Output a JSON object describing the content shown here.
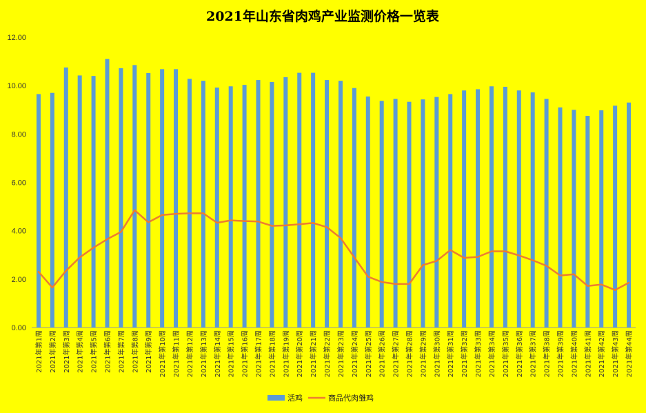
{
  "chart_data": {
    "type": "bar",
    "title": "2021年山东省肉鸡产业监测价格一览表",
    "categories": [
      "2021年第1周",
      "2021年第2周",
      "2021年第3周",
      "2021年第4周",
      "2021年第5周",
      "2021年第6周",
      "2021年第7周",
      "2021年第8周",
      "2021年第9周",
      "2021年第10周",
      "2021年第11周",
      "2021年第12周",
      "2021年第13周",
      "2021年第14周",
      "2021年第15周",
      "2021年第16周",
      "2021年第17周",
      "2021年第18周",
      "2021年第19周",
      "2021年第20周",
      "2021年第21周",
      "2021年第22周",
      "2021年第23周",
      "2021年第24周",
      "2021年第25周",
      "2021年第26周",
      "2021年第27周",
      "2021年第28周",
      "2021年第29周",
      "2021年第30周",
      "2021年第31周",
      "2021年第32周",
      "2021年第33周",
      "2021年第34周",
      "2021年第35周",
      "2021年第36周",
      "2021年第37周",
      "2021年第38周",
      "2021年第39周",
      "2021年第40周",
      "2021年第41周",
      "2021年第42周",
      "2021年第43周",
      "2021年第44周"
    ],
    "series": [
      {
        "name": "活鸡",
        "type": "bar",
        "color": "#5B9BD5",
        "values": [
          9.65,
          9.7,
          10.75,
          10.42,
          10.4,
          11.1,
          10.72,
          10.85,
          10.52,
          10.68,
          10.68,
          10.28,
          10.2,
          9.92,
          9.97,
          10.03,
          10.23,
          10.15,
          10.35,
          10.53,
          10.53,
          10.23,
          10.2,
          9.9,
          9.55,
          9.37,
          9.45,
          9.33,
          9.43,
          9.53,
          9.65,
          9.8,
          9.85,
          9.97,
          9.95,
          9.8,
          9.72,
          9.45,
          9.1,
          9.0,
          8.75,
          8.98,
          9.17,
          9.3
        ]
      },
      {
        "name": "商品代肉雏鸡",
        "type": "line",
        "color": "#ED7D31",
        "values": [
          2.3,
          1.65,
          2.35,
          2.9,
          3.3,
          3.65,
          3.95,
          4.85,
          4.35,
          4.65,
          4.7,
          4.72,
          4.72,
          4.33,
          4.43,
          4.4,
          4.38,
          4.2,
          4.22,
          4.27,
          4.32,
          4.15,
          3.7,
          2.9,
          2.1,
          1.88,
          1.8,
          1.8,
          2.58,
          2.75,
          3.2,
          2.88,
          2.92,
          3.15,
          3.15,
          2.98,
          2.78,
          2.55,
          2.15,
          2.2,
          1.72,
          1.78,
          1.55,
          1.85
        ]
      }
    ],
    "y_tick_labels": [
      "0.00",
      "2.00",
      "4.00",
      "6.00",
      "8.00",
      "10.00",
      "12.00"
    ],
    "ylim": [
      0,
      12
    ],
    "xlabel": "",
    "ylabel": "",
    "grid": false,
    "legend_position": "bottom"
  }
}
